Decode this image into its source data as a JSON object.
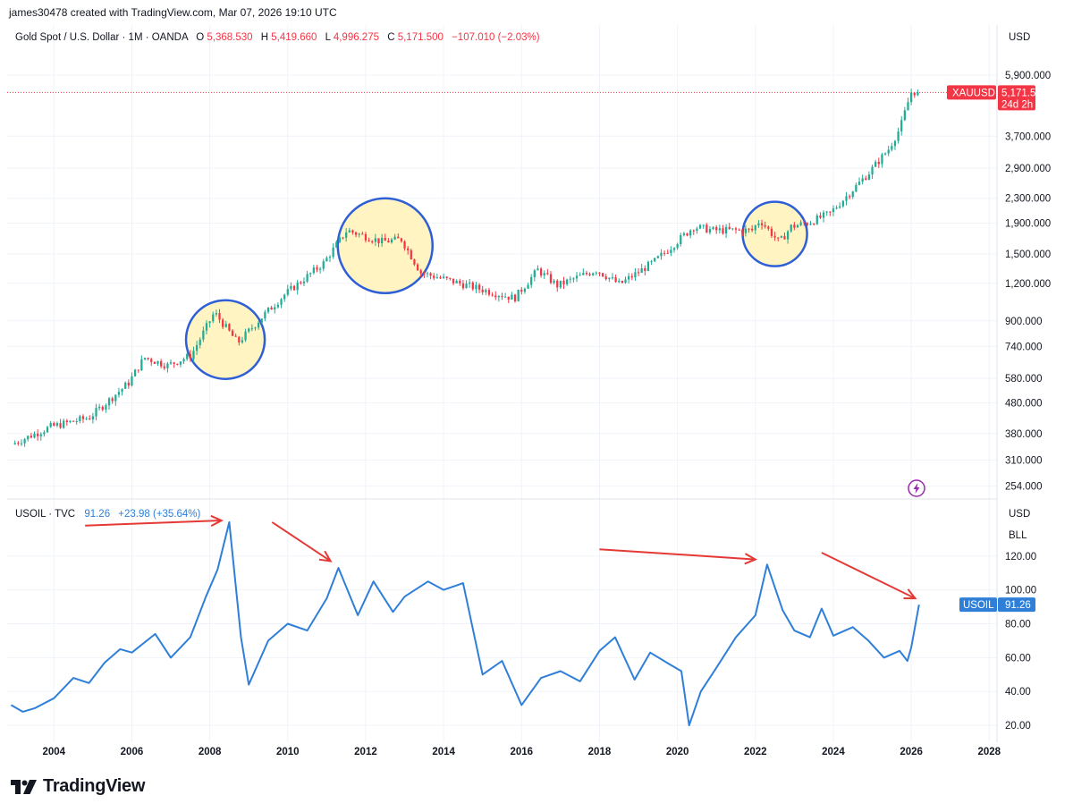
{
  "header": {
    "creator": "james30478 created with TradingView.com, Mar 07, 2026 19:10 UTC"
  },
  "colors": {
    "up": "#22ab94",
    "down": "#f23645",
    "oil_line": "#2f7fd8",
    "circle": "#2f5fd6",
    "circle_fill": "#fff4c2",
    "arrow": "#e53935",
    "grid": "#f0f3fa"
  },
  "chart_data": [
    {
      "type": "candlestick",
      "name": "Gold Spot / U.S. Dollar · 1M · OANDA",
      "legend": {
        "title": "Gold Spot / U.S. Dollar · 1M · OANDA",
        "o_key": "O",
        "o_val": "5,368.530",
        "h_key": "H",
        "h_val": "5,419.660",
        "l_key": "L",
        "l_val": "4,996.275",
        "c_key": "C",
        "c_val": "5,171.500",
        "change": "−107.010 (−2.03%)"
      },
      "currency": "USD",
      "scale": "log",
      "y_ticks": [
        "5,900.000",
        "3,700.000",
        "2,900.000",
        "2,300.000",
        "1,900.000",
        "1,500.000",
        "1,200.000",
        "900.000",
        "740.000",
        "580.000",
        "480.000",
        "380.000",
        "310.000",
        "254.000"
      ],
      "y_tick_values": [
        5900,
        3700,
        2900,
        2300,
        1900,
        1500,
        1200,
        900,
        740,
        580,
        480,
        380,
        310,
        254
      ],
      "ylim": [
        235,
        7200
      ],
      "price_tag": {
        "symbol": "XAUUSD",
        "price": "5,171.500",
        "countdown": "24d 2h",
        "value": 5171.5
      },
      "anchors": [
        [
          2003.0,
          350
        ],
        [
          2004.0,
          400
        ],
        [
          2005.0,
          430
        ],
        [
          2006.0,
          560
        ],
        [
          2006.4,
          680
        ],
        [
          2007.0,
          640
        ],
        [
          2007.6,
          690
        ],
        [
          2008.2,
          960
        ],
        [
          2008.8,
          760
        ],
        [
          2009.5,
          950
        ],
        [
          2010.0,
          1100
        ],
        [
          2011.0,
          1400
        ],
        [
          2011.6,
          1800
        ],
        [
          2012.5,
          1650
        ],
        [
          2013.0,
          1680
        ],
        [
          2013.5,
          1300
        ],
        [
          2014.0,
          1250
        ],
        [
          2015.0,
          1150
        ],
        [
          2015.9,
          1070
        ],
        [
          2016.5,
          1330
        ],
        [
          2017.0,
          1180
        ],
        [
          2018.0,
          1330
        ],
        [
          2018.6,
          1190
        ],
        [
          2019.5,
          1420
        ],
        [
          2020.5,
          1850
        ],
        [
          2021.0,
          1800
        ],
        [
          2022.0,
          1800
        ],
        [
          2022.2,
          1950
        ],
        [
          2022.7,
          1640
        ],
        [
          2023.0,
          1850
        ],
        [
          2023.5,
          1920
        ],
        [
          2024.0,
          2050
        ],
        [
          2025.0,
          2800
        ],
        [
          2025.5,
          3350
        ],
        [
          2025.8,
          3950
        ],
        [
          2026.0,
          4800
        ],
        [
          2026.1,
          5250
        ],
        [
          2026.2,
          5171.5
        ]
      ],
      "annotations": [
        {
          "kind": "circle",
          "center_year": 2008.4,
          "center_price": 780,
          "label": "highlight-2008"
        },
        {
          "kind": "circle",
          "center_year": 2012.5,
          "center_price": 1600,
          "label": "highlight-2012"
        },
        {
          "kind": "circle",
          "center_year": 2022.5,
          "center_price": 1750,
          "label": "highlight-2022"
        }
      ]
    },
    {
      "type": "line",
      "name": "USOIL · TVC",
      "legend": {
        "title": "USOIL · TVC",
        "value": "91.26",
        "change": "+23.98 (+35.64%)"
      },
      "currency": "USD",
      "unit": "BLL",
      "y_ticks": [
        "120.00",
        "100.00",
        "80.00",
        "60.00",
        "40.00",
        "20.00"
      ],
      "y_tick_values": [
        120,
        100,
        80,
        60,
        40,
        20
      ],
      "ylim": [
        10,
        150
      ],
      "price_tag": {
        "symbol": "USOIL",
        "price": "91.26",
        "value": 91.26
      },
      "x": [
        2002.9,
        2003.2,
        2003.5,
        2004.0,
        2004.5,
        2004.9,
        2005.3,
        2005.7,
        2006.0,
        2006.6,
        2007.0,
        2007.5,
        2007.9,
        2008.2,
        2008.5,
        2008.8,
        2009.0,
        2009.5,
        2010.0,
        2010.5,
        2011.0,
        2011.3,
        2011.8,
        2012.2,
        2012.7,
        2013.0,
        2013.6,
        2014.0,
        2014.5,
        2015.0,
        2015.5,
        2016.0,
        2016.5,
        2017.0,
        2017.5,
        2018.0,
        2018.4,
        2018.9,
        2019.3,
        2019.8,
        2020.1,
        2020.3,
        2020.6,
        2021.0,
        2021.5,
        2022.0,
        2022.3,
        2022.7,
        2023.0,
        2023.4,
        2023.7,
        2024.0,
        2024.5,
        2024.9,
        2025.3,
        2025.7,
        2025.9,
        2026.0,
        2026.2
      ],
      "values": [
        32,
        28,
        30,
        36,
        48,
        45,
        57,
        65,
        63,
        74,
        60,
        72,
        96,
        112,
        140,
        72,
        44,
        70,
        80,
        76,
        95,
        113,
        85,
        105,
        87,
        96,
        105,
        100,
        104,
        50,
        58,
        32,
        48,
        52,
        46,
        64,
        72,
        47,
        63,
        56,
        52,
        20,
        40,
        54,
        72,
        85,
        115,
        88,
        76,
        72,
        89,
        73,
        78,
        70,
        60,
        64,
        58,
        66,
        91.26
      ],
      "x_ticks": [
        "2004",
        "2006",
        "2008",
        "2010",
        "2012",
        "2014",
        "2016",
        "2018",
        "2020",
        "2022",
        "2024",
        "2026",
        "2028"
      ],
      "x_tick_values": [
        2004,
        2006,
        2008,
        2010,
        2012,
        2014,
        2016,
        2018,
        2020,
        2022,
        2024,
        2026,
        2028
      ],
      "annotations": [
        {
          "kind": "arrow",
          "from_year": 2004.8,
          "from_value": 138,
          "to_year": 2008.3,
          "to_value": 141
        },
        {
          "kind": "arrow",
          "from_year": 2009.6,
          "from_value": 140,
          "to_year": 2011.1,
          "to_value": 117
        },
        {
          "kind": "arrow",
          "from_year": 2018.0,
          "from_value": 124,
          "to_year": 2022.0,
          "to_value": 118
        },
        {
          "kind": "arrow",
          "from_year": 2023.7,
          "from_value": 122,
          "to_year": 2026.1,
          "to_value": 95
        }
      ]
    }
  ],
  "footer": {
    "brand": "TradingView"
  }
}
